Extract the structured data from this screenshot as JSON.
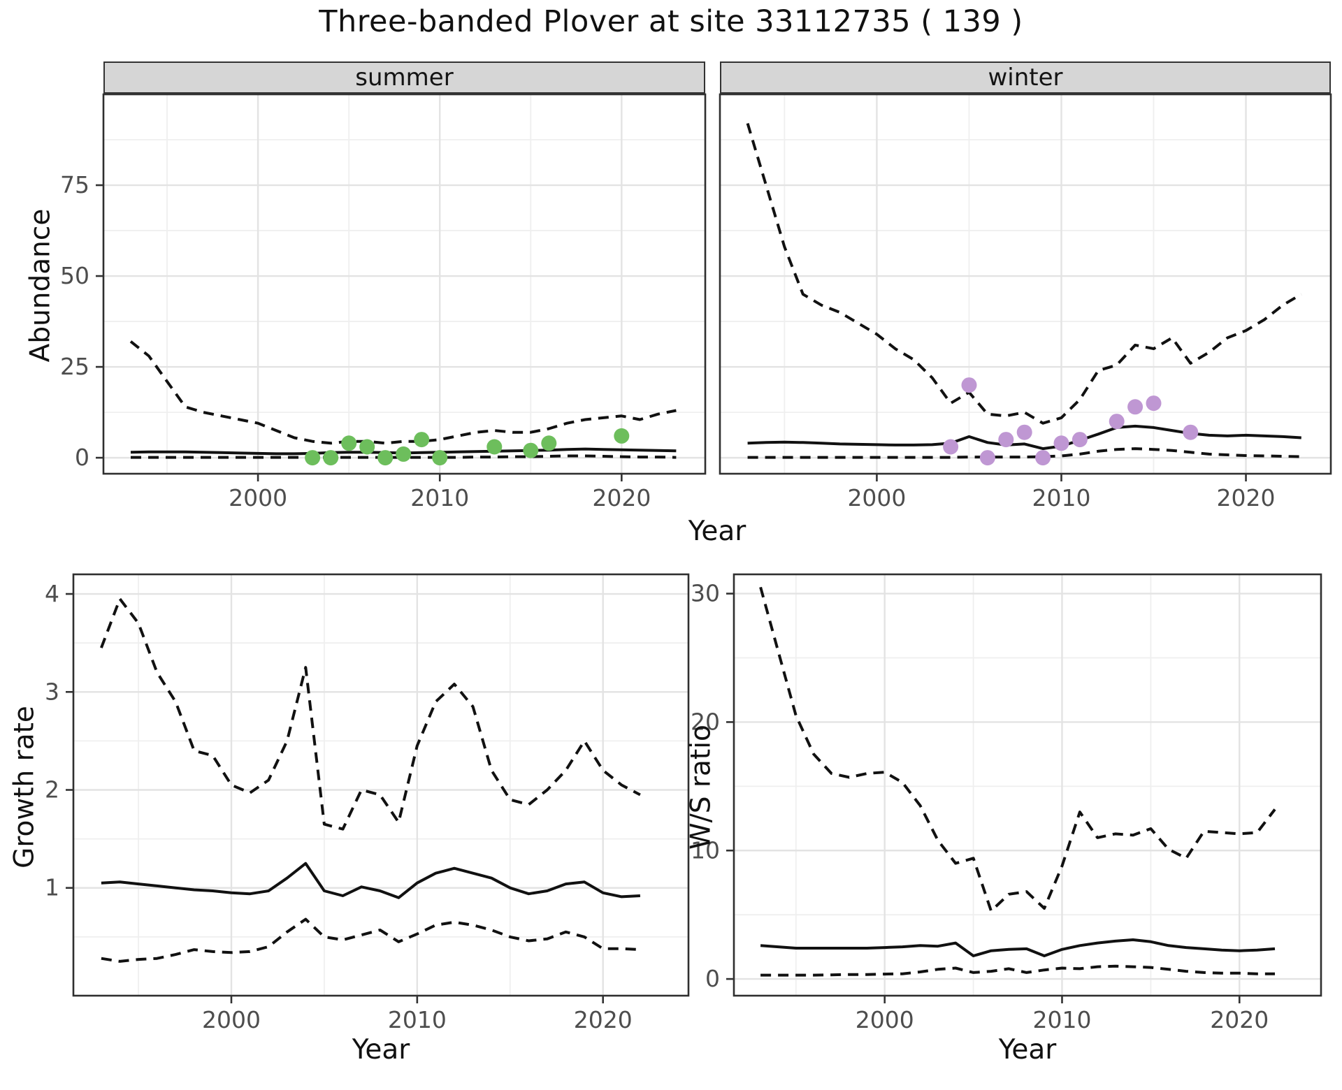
{
  "title": "Three-banded Plover at site 33112735 ( 139 )",
  "facets": [
    {
      "label": "summer"
    },
    {
      "label": "winter"
    }
  ],
  "axis_titles": {
    "y_top": "Abundance",
    "x_top": "Year",
    "y_bottom_left": "Growth rate",
    "x_bottom_left": "Year",
    "y_bottom_right": "W/S ratio",
    "x_bottom_right": "Year"
  },
  "colors": {
    "summer_points": "#6dbe5c",
    "winter_points": "#bf97d3",
    "line": "#111111",
    "strip_bg": "#d6d6d6",
    "panel_border": "#2f2f2f",
    "grid_major": "#e3e3e3",
    "grid_minor": "#efefef",
    "tick_text": "#4d4d4d"
  },
  "chart_data": [
    {
      "id": "abundance-summer",
      "type": "line",
      "title": "summer",
      "xlabel": "Year",
      "ylabel": "Abundance",
      "xlim": [
        1991.5,
        2024.6
      ],
      "ylim": [
        -4.4,
        100
      ],
      "xticks": [
        2000,
        2010,
        2020
      ],
      "xminor": [
        1995,
        2005,
        2015,
        2025
      ],
      "yticks": [
        0,
        25,
        50,
        75
      ],
      "yminor": [
        12.5,
        37.5,
        62.5,
        87.5
      ],
      "x": [
        1993,
        1994,
        1995,
        1996,
        1997,
        1998,
        1999,
        2000,
        2001,
        2002,
        2003,
        2004,
        2005,
        2006,
        2007,
        2008,
        2009,
        2010,
        2011,
        2012,
        2013,
        2014,
        2015,
        2016,
        2017,
        2018,
        2019,
        2020,
        2021,
        2022,
        2023
      ],
      "series": [
        {
          "name": "upper95",
          "style": "dashed",
          "values": [
            32,
            28,
            21,
            14,
            12.5,
            11.5,
            10.5,
            9.5,
            7.5,
            5.5,
            4.5,
            4,
            4.5,
            4.5,
            4,
            4.5,
            4.5,
            5,
            6,
            7,
            7.5,
            7,
            7,
            8,
            9.5,
            10.5,
            11,
            11.5,
            10.5,
            12,
            13
          ]
        },
        {
          "name": "median",
          "style": "solid",
          "values": [
            1.5,
            1.6,
            1.6,
            1.6,
            1.5,
            1.4,
            1.3,
            1.2,
            1.1,
            1.1,
            1.2,
            1.4,
            1.5,
            1.5,
            1.4,
            1.3,
            1.4,
            1.5,
            1.6,
            1.7,
            1.8,
            1.9,
            2,
            2.1,
            2.3,
            2.4,
            2.3,
            2.2,
            2.1,
            2,
            1.9
          ]
        },
        {
          "name": "lower95",
          "style": "dashed",
          "values": [
            0.1,
            0.1,
            0.1,
            0.1,
            0.1,
            0.1,
            0.1,
            0.1,
            0.1,
            0.1,
            0.1,
            0.1,
            0.1,
            0.1,
            0.1,
            0.1,
            0.1,
            0.1,
            0.1,
            0.2,
            0.2,
            0.3,
            0.3,
            0.4,
            0.5,
            0.5,
            0.4,
            0.3,
            0.2,
            0.2,
            0.1
          ]
        }
      ],
      "observations": {
        "color_key": "summer_points",
        "x": [
          2003,
          2004,
          2005,
          2006,
          2007,
          2008,
          2009,
          2010,
          2013,
          2015,
          2016,
          2020
        ],
        "y": [
          0,
          0,
          4,
          3,
          0,
          1,
          5,
          0,
          3,
          2,
          4,
          6
        ]
      }
    },
    {
      "id": "abundance-winter",
      "type": "line",
      "title": "winter",
      "xlabel": "Year",
      "ylabel": "Abundance",
      "xlim": [
        1991.5,
        2024.6
      ],
      "ylim": [
        -4.4,
        100
      ],
      "xticks": [
        2000,
        2010,
        2020
      ],
      "xminor": [
        1995,
        2005,
        2015,
        2025
      ],
      "yticks": [
        0,
        25,
        50,
        75
      ],
      "yminor": [
        12.5,
        37.5,
        62.5,
        87.5
      ],
      "x": [
        1993,
        1994,
        1995,
        1996,
        1997,
        1998,
        1999,
        2000,
        2001,
        2002,
        2003,
        2004,
        2005,
        2006,
        2007,
        2008,
        2009,
        2010,
        2011,
        2012,
        2013,
        2014,
        2015,
        2016,
        2017,
        2018,
        2019,
        2020,
        2021,
        2022,
        2023
      ],
      "series": [
        {
          "name": "upper95",
          "style": "dashed",
          "values": [
            92,
            75,
            58,
            45,
            42,
            40,
            37,
            34,
            30,
            27,
            22,
            15,
            18,
            12,
            11.5,
            12.5,
            9.5,
            11,
            16,
            24,
            25.5,
            31,
            30,
            33,
            26,
            29,
            33,
            35,
            38,
            42,
            45
          ]
        },
        {
          "name": "median",
          "style": "solid",
          "values": [
            4,
            4.2,
            4.3,
            4.2,
            4,
            3.8,
            3.7,
            3.6,
            3.5,
            3.5,
            3.6,
            4,
            5.8,
            4.2,
            3.5,
            3.8,
            2.5,
            3.2,
            4.8,
            6.5,
            8.3,
            8.7,
            8.3,
            7.5,
            6.7,
            6.2,
            6,
            6.2,
            6,
            5.8,
            5.5
          ]
        },
        {
          "name": "lower95",
          "style": "dashed",
          "values": [
            0.1,
            0.1,
            0.1,
            0.1,
            0.1,
            0.1,
            0.1,
            0.1,
            0.1,
            0.1,
            0.1,
            0.1,
            0.2,
            0.2,
            0.2,
            0.2,
            0.3,
            0.5,
            1,
            1.8,
            2.3,
            2.5,
            2.3,
            2,
            1.5,
            1,
            0.8,
            0.6,
            0.5,
            0.4,
            0.3
          ]
        }
      ],
      "observations": {
        "color_key": "winter_points",
        "x": [
          2004,
          2005,
          2006,
          2007,
          2008,
          2009,
          2010,
          2011,
          2013,
          2014,
          2015,
          2017
        ],
        "y": [
          3,
          20,
          0,
          5,
          7,
          0,
          4,
          5,
          10,
          14,
          15,
          7
        ]
      }
    },
    {
      "id": "growth-rate",
      "type": "line",
      "title": "",
      "xlabel": "Year",
      "ylabel": "Growth rate",
      "xlim": [
        1991.5,
        2024.6
      ],
      "ylim": [
        -0.1,
        4.2
      ],
      "xticks": [
        2000,
        2010,
        2020
      ],
      "xminor": [
        1995,
        2005,
        2015,
        2025
      ],
      "yticks": [
        1,
        2,
        3,
        4
      ],
      "yminor": [
        0.5,
        1.5,
        2.5,
        3.5
      ],
      "x": [
        1993,
        1994,
        1995,
        1996,
        1997,
        1998,
        1999,
        2000,
        2001,
        2002,
        2003,
        2004,
        2005,
        2006,
        2007,
        2008,
        2009,
        2010,
        2011,
        2012,
        2013,
        2014,
        2015,
        2016,
        2017,
        2018,
        2019,
        2020,
        2021,
        2022
      ],
      "series": [
        {
          "name": "upper95",
          "style": "dashed",
          "values": [
            3.45,
            3.95,
            3.7,
            3.2,
            2.9,
            2.4,
            2.35,
            2.05,
            1.97,
            2.1,
            2.5,
            3.25,
            1.65,
            1.6,
            2,
            1.95,
            1.67,
            2.45,
            2.9,
            3.08,
            2.85,
            2.2,
            1.9,
            1.85,
            2,
            2.2,
            2.5,
            2.2,
            2.05,
            1.95
          ]
        },
        {
          "name": "median",
          "style": "solid",
          "values": [
            1.05,
            1.06,
            1.04,
            1.02,
            1,
            0.98,
            0.97,
            0.95,
            0.94,
            0.97,
            1.1,
            1.25,
            0.97,
            0.92,
            1.01,
            0.97,
            0.9,
            1.05,
            1.15,
            1.2,
            1.15,
            1.1,
            1,
            0.94,
            0.97,
            1.04,
            1.06,
            0.95,
            0.91,
            0.92
          ]
        },
        {
          "name": "lower95",
          "style": "dashed",
          "values": [
            0.28,
            0.25,
            0.27,
            0.28,
            0.32,
            0.37,
            0.35,
            0.34,
            0.35,
            0.4,
            0.55,
            0.68,
            0.5,
            0.47,
            0.52,
            0.57,
            0.45,
            0.53,
            0.62,
            0.65,
            0.62,
            0.57,
            0.5,
            0.46,
            0.48,
            0.55,
            0.5,
            0.38,
            0.38,
            0.37
          ]
        }
      ],
      "observations": null
    },
    {
      "id": "ws-ratio",
      "type": "line",
      "title": "",
      "xlabel": "Year",
      "ylabel": "W/S ratio",
      "xlim": [
        1991.5,
        2024.6
      ],
      "ylim": [
        -1.3,
        31.5
      ],
      "xticks": [
        2000,
        2010,
        2020
      ],
      "xminor": [
        1995,
        2005,
        2015,
        2025
      ],
      "yticks": [
        0,
        10,
        20,
        30
      ],
      "yminor": [
        5,
        15,
        25
      ],
      "x": [
        1993,
        1994,
        1995,
        1996,
        1997,
        1998,
        1999,
        2000,
        2001,
        2002,
        2003,
        2004,
        2005,
        2006,
        2007,
        2008,
        2009,
        2010,
        2011,
        2012,
        2013,
        2014,
        2015,
        2016,
        2017,
        2018,
        2019,
        2020,
        2021,
        2022
      ],
      "series": [
        {
          "name": "upper95",
          "style": "dashed",
          "values": [
            30.5,
            25.5,
            20.5,
            17.5,
            16,
            15.7,
            16,
            16.1,
            15.3,
            13.5,
            10.8,
            9,
            9.4,
            5.3,
            6.6,
            6.8,
            5.5,
            8.8,
            13,
            11,
            11.3,
            11.2,
            11.7,
            10.1,
            9.4,
            11.5,
            11.4,
            11.3,
            11.4,
            13.2
          ]
        },
        {
          "name": "median",
          "style": "solid",
          "values": [
            2.6,
            2.5,
            2.4,
            2.4,
            2.4,
            2.4,
            2.4,
            2.45,
            2.5,
            2.6,
            2.55,
            2.8,
            1.8,
            2.2,
            2.3,
            2.35,
            1.8,
            2.3,
            2.6,
            2.8,
            2.95,
            3.05,
            2.9,
            2.6,
            2.45,
            2.35,
            2.25,
            2.2,
            2.25,
            2.35
          ]
        },
        {
          "name": "lower95",
          "style": "dashed",
          "values": [
            0.3,
            0.3,
            0.3,
            0.3,
            0.32,
            0.35,
            0.35,
            0.38,
            0.4,
            0.55,
            0.75,
            0.85,
            0.5,
            0.6,
            0.8,
            0.5,
            0.7,
            0.85,
            0.8,
            0.95,
            1,
            0.95,
            0.9,
            0.75,
            0.6,
            0.5,
            0.45,
            0.45,
            0.4,
            0.4
          ]
        }
      ],
      "observations": null
    }
  ]
}
